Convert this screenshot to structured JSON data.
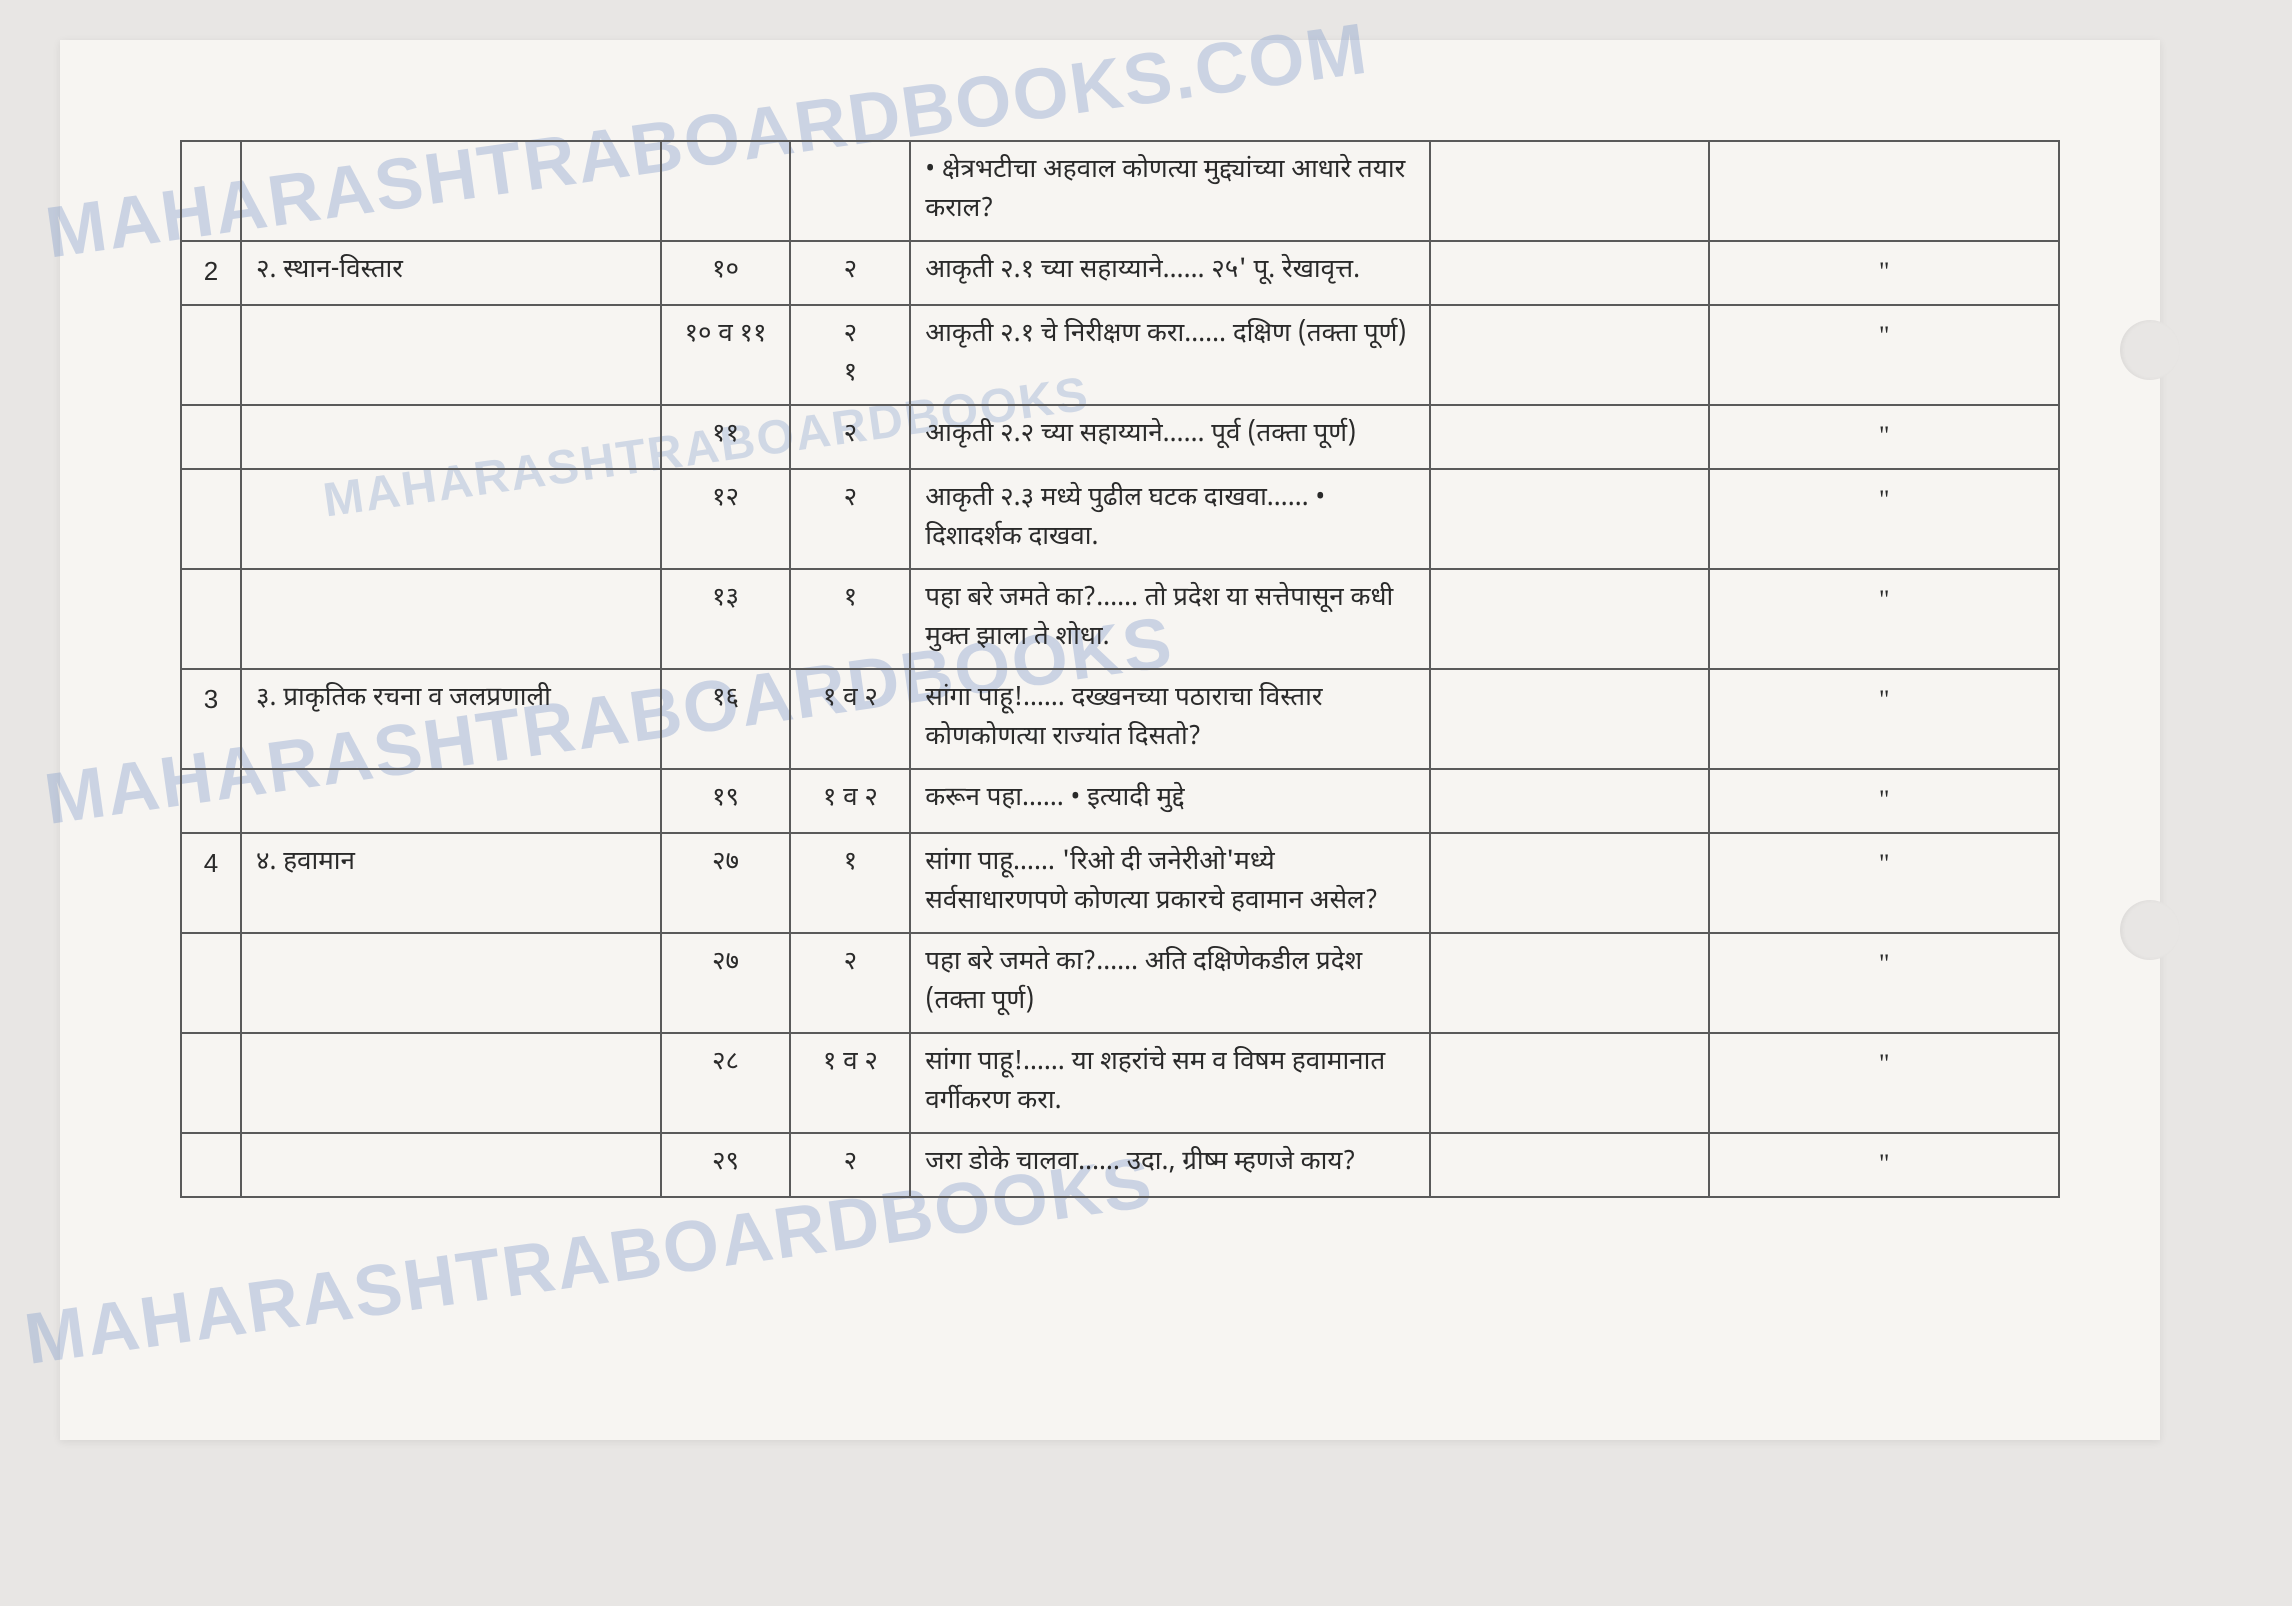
{
  "watermarks": {
    "text1": "MAHARASHTRABOARDBOOKS.COM",
    "text2": "MAHARASHTRABOARDBOOKS",
    "text3": "MAHARASHTRABOARDBOOKS",
    "text4": "MAHARASHTRABOARDBOOKS"
  },
  "table": {
    "border_color": "#5a5a5a",
    "background": "#f7f5f2",
    "rows": [
      {
        "sr": "",
        "chapter": "",
        "page": "",
        "ex": "",
        "activity": "• क्षेत्रभटीचा अहवाल कोणत्या मुद्द्यांच्या आधारे तयार कराल?",
        "remark": "",
        "last": ""
      },
      {
        "sr": "2",
        "chapter": "२. स्थान-विस्तार",
        "page": "१०",
        "ex": "२",
        "activity": "आकृती २.१ च्या सहाय्याने…… २५' पू. रेखावृत्त.",
        "remark": "",
        "last": "\""
      },
      {
        "sr": "",
        "chapter": "",
        "page": "१० व ११",
        "ex": "२\n१",
        "activity": "आकृती २.१ चे निरीक्षण करा…… दक्षिण (तक्ता पूर्ण)",
        "remark": "",
        "last": "\""
      },
      {
        "sr": "",
        "chapter": "",
        "page": "११",
        "ex": "२",
        "activity": "आकृती २.२ च्या सहाय्याने…… पूर्व (तक्ता पूर्ण)",
        "remark": "",
        "last": "\""
      },
      {
        "sr": "",
        "chapter": "",
        "page": "१२",
        "ex": "२",
        "activity": "आकृती २.३ मध्ये पुढील घटक दाखवा…… • दिशादर्शक दाखवा.",
        "remark": "",
        "last": "\""
      },
      {
        "sr": "",
        "chapter": "",
        "page": "१३",
        "ex": "१",
        "activity": "पहा बरे जमते का?……  तो प्रदेश या सत्तेपासून कधी मुक्त झाला ते शोधा.",
        "remark": "",
        "last": "\""
      },
      {
        "sr": "3",
        "chapter": "३. प्राकृतिक रचना व जलप्रणाली",
        "page": "१६",
        "ex": "१ व २",
        "activity": "सांगा पाहू!…… दख्खनच्या पठाराचा विस्तार कोणकोणत्या राज्यांत दिसतो?",
        "remark": "",
        "last": "\""
      },
      {
        "sr": "",
        "chapter": "",
        "page": "१९",
        "ex": "१ व २",
        "activity": "करून पहा…… • इत्यादी मुद्दे",
        "remark": "",
        "last": "\""
      },
      {
        "sr": "4",
        "chapter": "४. हवामान",
        "page": "२७",
        "ex": "१",
        "activity": "सांगा पाहू…… 'रिओ दी जनेरीओ'मध्ये सर्वसाधारणपणे कोणत्या प्रकारचे हवामान असेल?",
        "remark": "",
        "last": "\""
      },
      {
        "sr": "",
        "chapter": "",
        "page": "२७",
        "ex": "२",
        "activity": "पहा बरे जमते का?…… अति दक्षिणेकडील प्रदेश (तक्ता पूर्ण)",
        "remark": "",
        "last": "\""
      },
      {
        "sr": "",
        "chapter": "",
        "page": "२८",
        "ex": "१ व २",
        "activity": "सांगा पाहू!…… या शहरांचे सम व विषम हवामानात वर्गीकरण करा.",
        "remark": "",
        "last": "\""
      },
      {
        "sr": "",
        "chapter": "",
        "page": "२९",
        "ex": "२",
        "activity": "जरा डोके चालवा…… उदा., ग्रीष्म म्हणजे काय?",
        "remark": "",
        "last": "\""
      }
    ]
  }
}
